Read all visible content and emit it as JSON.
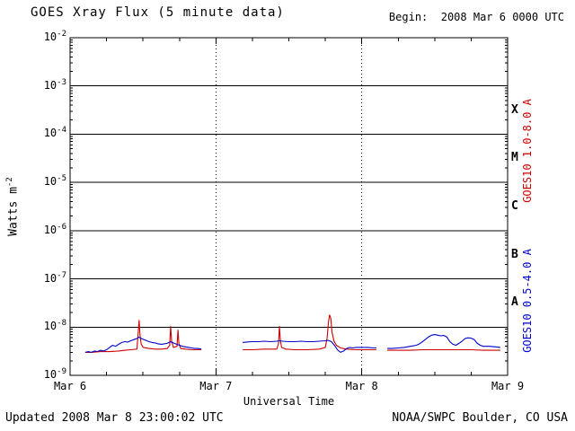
{
  "header": {
    "begin": "Begin:  2008 Mar 6 0000 UTC"
  },
  "footer": {
    "updated": "Updated 2008 Mar 8 23:00:02 UTC",
    "source": "NOAA/SWPC Boulder, CO USA"
  },
  "chart_data": {
    "type": "line",
    "title": "GOES Xray Flux (5 minute data)",
    "xlabel": "Universal Time",
    "ylabel_base": "Watts m",
    "ylabel_exp": "-2",
    "x_range_hours": [
      0,
      72
    ],
    "x_ticks": [
      {
        "hour": 0,
        "label": "Mar 6"
      },
      {
        "hour": 24,
        "label": "Mar 7"
      },
      {
        "hour": 48,
        "label": "Mar 8"
      },
      {
        "hour": 72,
        "label": "Mar 9"
      }
    ],
    "x_minor_tick_hours": 6,
    "y_log_range": [
      -9,
      -2
    ],
    "y_tick_exponents": [
      -2,
      -3,
      -4,
      -5,
      -6,
      -7,
      -8,
      -9
    ],
    "flare_classes": [
      {
        "label": "X",
        "log_center": -3.5
      },
      {
        "label": "M",
        "log_center": -4.5
      },
      {
        "label": "C",
        "log_center": -5.5
      },
      {
        "label": "B",
        "log_center": -6.5
      },
      {
        "label": "A",
        "log_center": -7.5
      }
    ],
    "grid": {
      "horizontal": "solid-at-decades",
      "v_dashed_hours": [
        24,
        48
      ]
    },
    "colors": {
      "axis": "#000000",
      "red_series": "#cc0000",
      "blue_series": "#0000cc"
    },
    "series": [
      {
        "name": "GOES10 1.0-8.0 A",
        "color": "#cc0000",
        "points": [
          [
            2.5,
            3e-09
          ],
          [
            3.5,
            3e-09
          ],
          [
            5,
            3.1e-09
          ],
          [
            6.5,
            3.1e-09
          ],
          [
            8,
            3.2e-09
          ],
          [
            9,
            3.3e-09
          ],
          [
            10,
            3.4e-09
          ],
          [
            11,
            3.5e-09
          ],
          [
            11.2,
            7.5e-09
          ],
          [
            11.35,
            1.4e-08
          ],
          [
            11.5,
            7e-09
          ],
          [
            11.7,
            4.5e-09
          ],
          [
            12,
            3.8e-09
          ],
          [
            13,
            3.6e-09
          ],
          [
            14,
            3.5e-09
          ],
          [
            15,
            3.5e-09
          ],
          [
            16,
            3.6e-09
          ],
          [
            16.4,
            4.2e-09
          ],
          [
            16.55,
            1.05e-08
          ],
          [
            16.7,
            5.2e-09
          ],
          [
            17,
            3.8e-09
          ],
          [
            17.6,
            4e-09
          ],
          [
            17.75,
            8.8e-09
          ],
          [
            17.9,
            4.6e-09
          ],
          [
            18.2,
            3.6e-09
          ],
          [
            19,
            3.5e-09
          ],
          [
            20,
            3.4e-09
          ],
          [
            21,
            3.4e-09
          ],
          [
            21.6,
            3.4e-09
          ],
          null,
          [
            28.4,
            3.4e-09
          ],
          [
            30,
            3.4e-09
          ],
          [
            32,
            3.5e-09
          ],
          [
            34,
            3.5e-09
          ],
          [
            34.3,
            4.5e-09
          ],
          [
            34.45,
            1.05e-08
          ],
          [
            34.6,
            5.5e-09
          ],
          [
            34.8,
            3.8e-09
          ],
          [
            35.5,
            3.5e-09
          ],
          [
            37,
            3.4e-09
          ],
          [
            39,
            3.4e-09
          ],
          [
            41,
            3.5e-09
          ],
          [
            42,
            3.8e-09
          ],
          [
            42.3,
            6e-09
          ],
          [
            42.5,
            1.2e-08
          ],
          [
            42.7,
            1.8e-08
          ],
          [
            42.9,
            1.5e-08
          ],
          [
            43.1,
            8e-09
          ],
          [
            43.4,
            5.2e-09
          ],
          [
            43.8,
            4.2e-09
          ],
          [
            44.5,
            3.7e-09
          ],
          [
            45.5,
            3.5e-09
          ],
          [
            47,
            3.4e-09
          ],
          [
            48.5,
            3.4e-09
          ],
          [
            50.4,
            3.4e-09
          ],
          null,
          [
            52.2,
            3.3e-09
          ],
          [
            54,
            3.3e-09
          ],
          [
            56,
            3.3e-09
          ],
          [
            58,
            3.4e-09
          ],
          [
            60,
            3.4e-09
          ],
          [
            62,
            3.4e-09
          ],
          [
            64,
            3.4e-09
          ],
          [
            66,
            3.4e-09
          ],
          [
            68,
            3.3e-09
          ],
          [
            70,
            3.3e-09
          ],
          [
            70.8,
            3.3e-09
          ]
        ]
      },
      {
        "name": "GOES10 0.5-4.0 A",
        "color": "#0000cc",
        "points": [
          [
            2.5,
            3e-09
          ],
          [
            3,
            3.1e-09
          ],
          [
            3.5,
            3e-09
          ],
          [
            4,
            3.2e-09
          ],
          [
            4.5,
            3.1e-09
          ],
          [
            5,
            3.3e-09
          ],
          [
            5.5,
            3.2e-09
          ],
          [
            6,
            3.4e-09
          ],
          [
            6.5,
            3.8e-09
          ],
          [
            7,
            4.2e-09
          ],
          [
            7.5,
            4e-09
          ],
          [
            8,
            4.4e-09
          ],
          [
            8.5,
            4.8e-09
          ],
          [
            9,
            5e-09
          ],
          [
            9.5,
            4.9e-09
          ],
          [
            10,
            5.2e-09
          ],
          [
            10.5,
            5.5e-09
          ],
          [
            11,
            5.8e-09
          ],
          [
            11.3,
            6.2e-09
          ],
          [
            11.6,
            5.9e-09
          ],
          [
            12,
            5.6e-09
          ],
          [
            12.5,
            5.3e-09
          ],
          [
            13,
            5e-09
          ],
          [
            13.5,
            4.8e-09
          ],
          [
            14,
            4.7e-09
          ],
          [
            14.5,
            4.5e-09
          ],
          [
            15,
            4.4e-09
          ],
          [
            15.5,
            4.5e-09
          ],
          [
            16,
            4.6e-09
          ],
          [
            16.5,
            5e-09
          ],
          [
            17,
            4.7e-09
          ],
          [
            17.5,
            4.4e-09
          ],
          [
            18,
            4.2e-09
          ],
          [
            18.5,
            4e-09
          ],
          [
            19,
            3.9e-09
          ],
          [
            19.5,
            3.8e-09
          ],
          [
            20,
            3.7e-09
          ],
          [
            20.5,
            3.6e-09
          ],
          [
            21,
            3.6e-09
          ],
          [
            21.6,
            3.5e-09
          ],
          null,
          [
            28.4,
            4.8e-09
          ],
          [
            29,
            4.9e-09
          ],
          [
            30,
            5e-09
          ],
          [
            31,
            5e-09
          ],
          [
            32,
            5.1e-09
          ],
          [
            33,
            5e-09
          ],
          [
            34,
            5.1e-09
          ],
          [
            34.5,
            5.2e-09
          ],
          [
            35,
            5.1e-09
          ],
          [
            36,
            5e-09
          ],
          [
            37,
            5e-09
          ],
          [
            38,
            5.1e-09
          ],
          [
            39,
            5e-09
          ],
          [
            40,
            5e-09
          ],
          [
            41,
            5.1e-09
          ],
          [
            42,
            5.2e-09
          ],
          [
            42.5,
            5.3e-09
          ],
          [
            43,
            5e-09
          ],
          [
            43.5,
            4.2e-09
          ],
          [
            44,
            3.4e-09
          ],
          [
            44.5,
            3e-09
          ],
          [
            45,
            3.2e-09
          ],
          [
            45.5,
            3.6e-09
          ],
          [
            46,
            3.8e-09
          ],
          [
            46.5,
            3.7e-09
          ],
          [
            47,
            3.8e-09
          ],
          [
            48,
            3.8e-09
          ],
          [
            49,
            3.8e-09
          ],
          [
            50,
            3.7e-09
          ],
          [
            50.4,
            3.7e-09
          ],
          null,
          [
            52.2,
            3.6e-09
          ],
          [
            53,
            3.6e-09
          ],
          [
            54,
            3.7e-09
          ],
          [
            55,
            3.8e-09
          ],
          [
            56,
            4e-09
          ],
          [
            57,
            4.2e-09
          ],
          [
            57.5,
            4.5e-09
          ],
          [
            58,
            5e-09
          ],
          [
            58.5,
            5.6e-09
          ],
          [
            59,
            6.3e-09
          ],
          [
            59.5,
            6.8e-09
          ],
          [
            60,
            7e-09
          ],
          [
            60.5,
            6.8e-09
          ],
          [
            61,
            6.6e-09
          ],
          [
            61.5,
            6.7e-09
          ],
          [
            62,
            6.2e-09
          ],
          [
            62.5,
            5e-09
          ],
          [
            63,
            4.4e-09
          ],
          [
            63.5,
            4.2e-09
          ],
          [
            64,
            4.6e-09
          ],
          [
            64.5,
            5.1e-09
          ],
          [
            65,
            5.8e-09
          ],
          [
            65.5,
            6e-09
          ],
          [
            66,
            5.9e-09
          ],
          [
            66.5,
            5.5e-09
          ],
          [
            67,
            4.6e-09
          ],
          [
            67.5,
            4.2e-09
          ],
          [
            68,
            4e-09
          ],
          [
            69,
            4e-09
          ],
          [
            70,
            3.9e-09
          ],
          [
            70.8,
            3.8e-09
          ]
        ]
      }
    ]
  }
}
